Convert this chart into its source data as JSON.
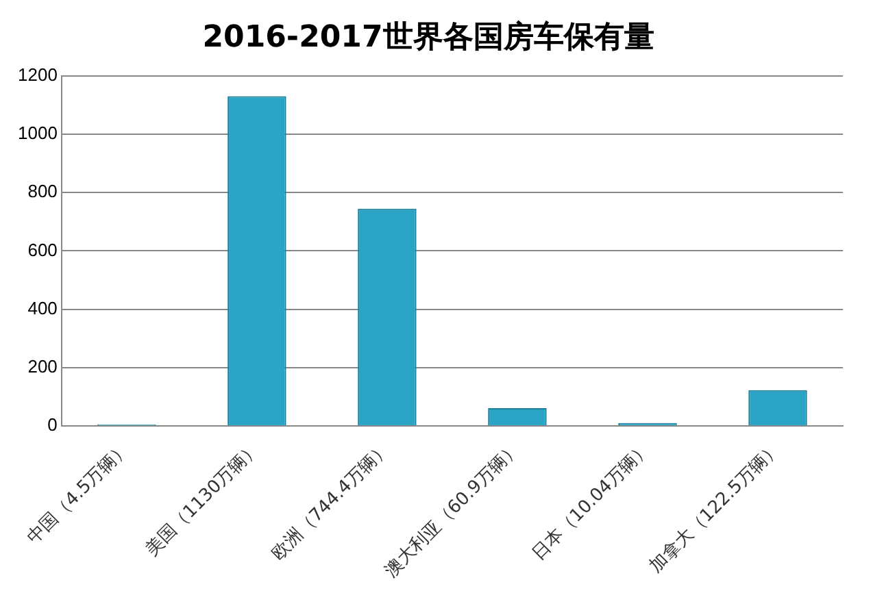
{
  "chart_data": {
    "type": "bar",
    "title": "2016-2017世界各国房车保有量",
    "categories": [
      "中国（4.5万辆）",
      "美国（1130万辆）",
      "欧洲（744.4万辆）",
      "澳大利亚（60.9万辆）",
      "日本（10.04万辆）",
      "加拿大（122.5万辆）"
    ],
    "values": [
      4.5,
      1130,
      744.4,
      60.9,
      10.04,
      122.5
    ],
    "color": "#2aa3c4",
    "ylim": [
      0,
      1200
    ],
    "yticks": [
      0,
      200,
      400,
      600,
      800,
      1000,
      1200
    ],
    "grid": "y"
  }
}
